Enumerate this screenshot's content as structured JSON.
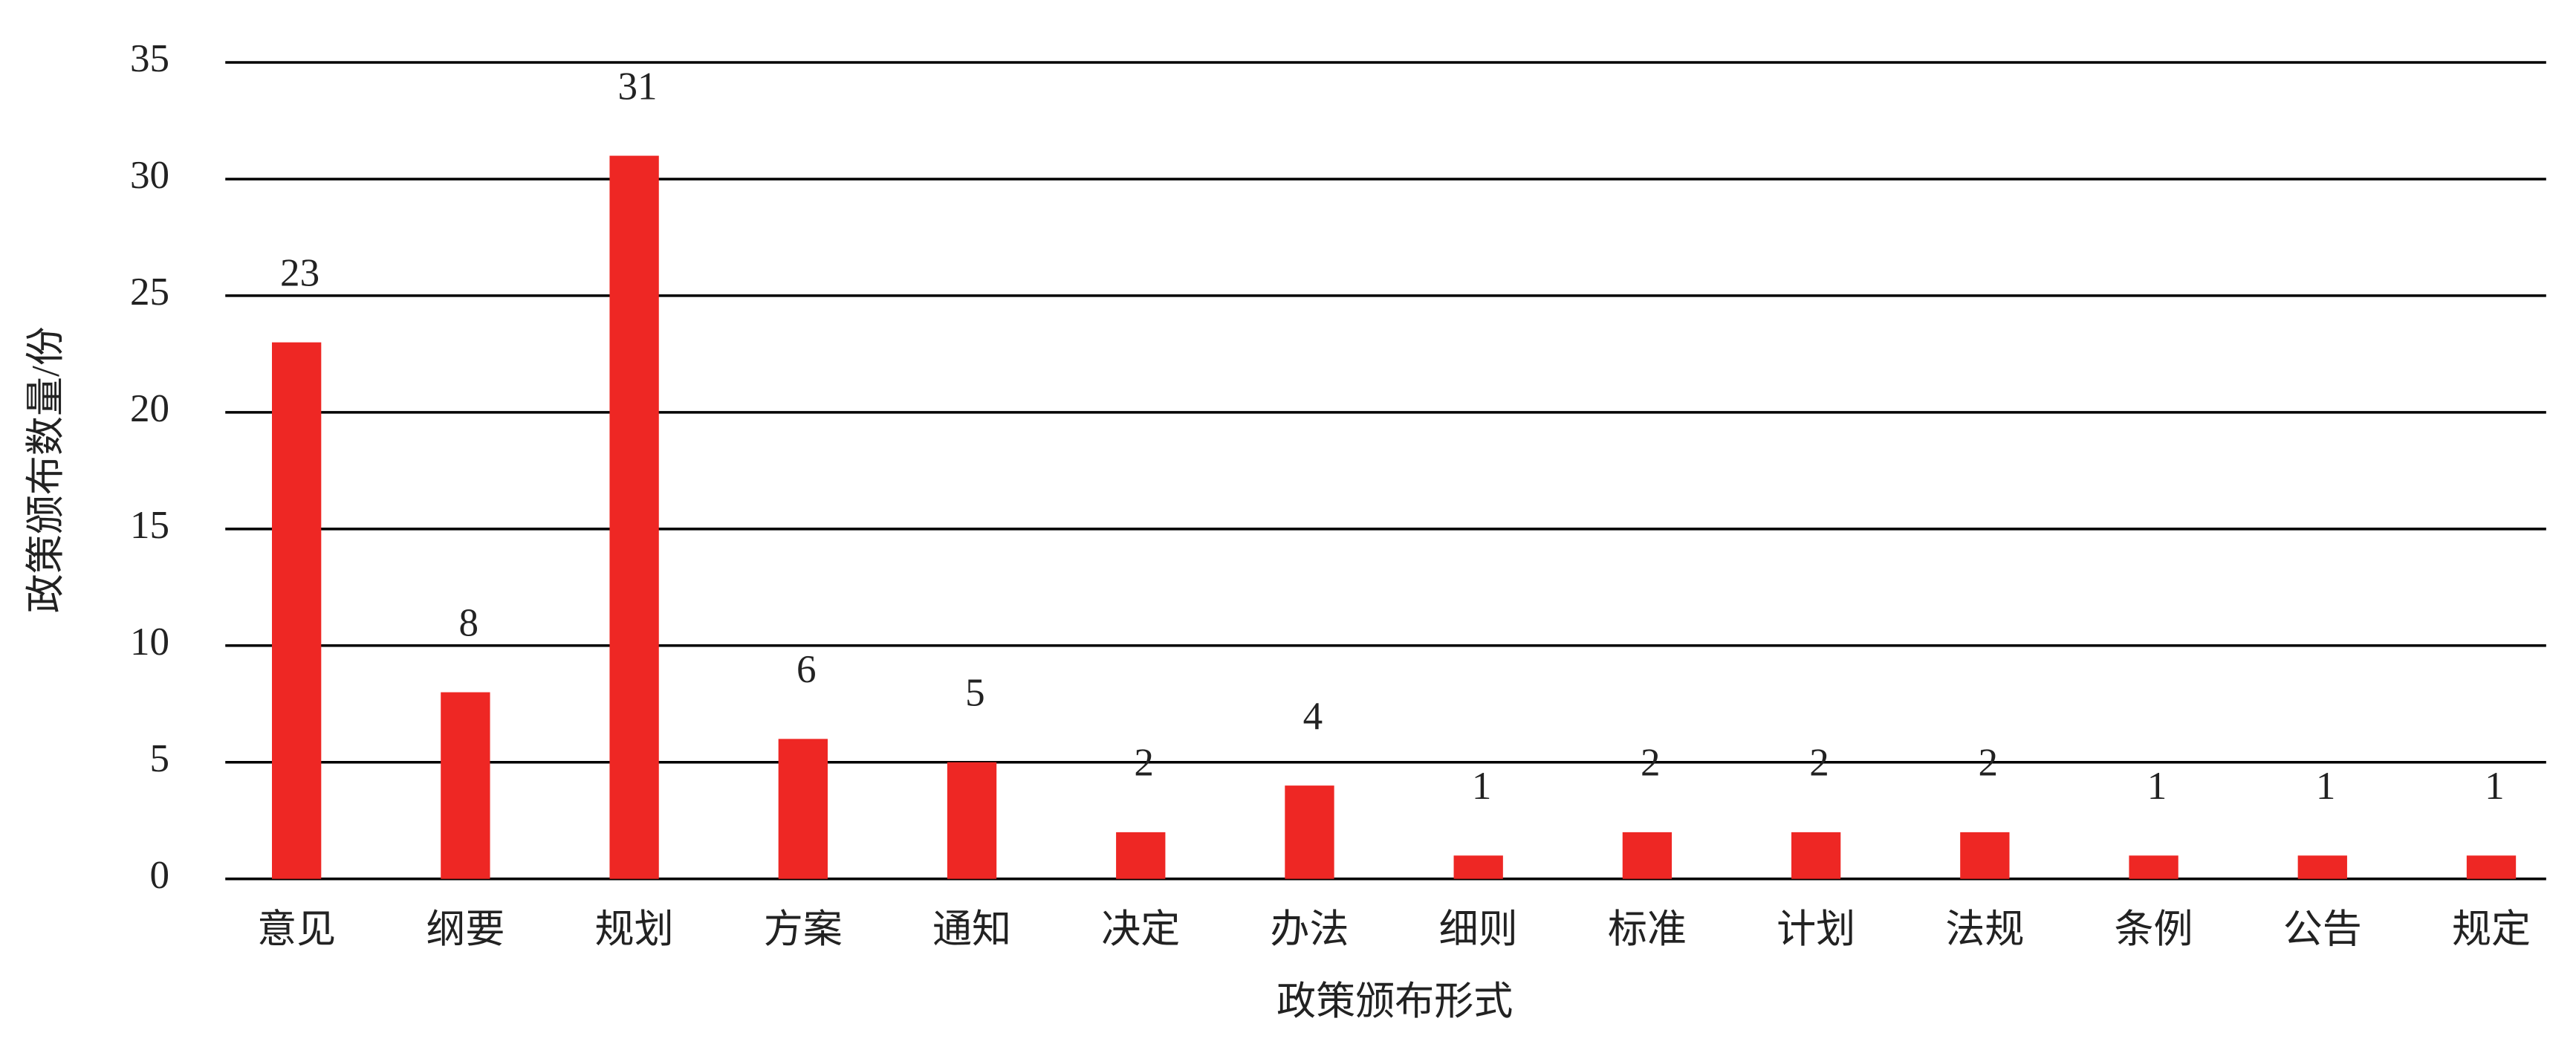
{
  "chart_data": {
    "type": "bar",
    "categories": [
      "意见",
      "纲要",
      "规划",
      "方案",
      "通知",
      "决定",
      "办法",
      "细则",
      "标准",
      "计划",
      "法规",
      "条例",
      "公告",
      "规定"
    ],
    "values": [
      23,
      8,
      31,
      6,
      5,
      2,
      4,
      1,
      2,
      2,
      2,
      1,
      1,
      1
    ],
    "color": "#ee2724",
    "x_label": "政策颁布形式",
    "y_label": "政策颁布数量/份",
    "ylim": [
      0,
      35
    ],
    "yticks": [
      0,
      5,
      10,
      15,
      20,
      25,
      30,
      35
    ],
    "grid": true
  }
}
